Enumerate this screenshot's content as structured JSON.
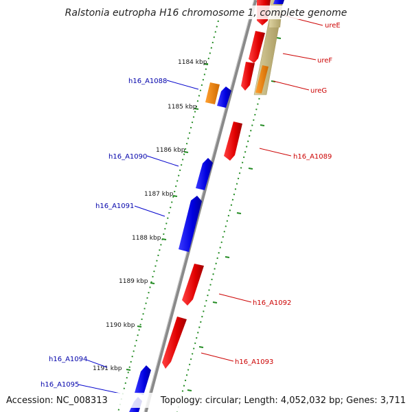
{
  "title": "Ralstonia eutropha H16 chromosome 1, complete genome",
  "footer": {
    "accession": "Accession: NC_008313",
    "topology": "Topology: circular; Length: 4,052,032 bp; Genes: 3,711"
  },
  "ticks": [
    {
      "label": "1184 kbp"
    },
    {
      "label": "1185 kbp"
    },
    {
      "label": "1186 kbp"
    },
    {
      "label": "1187 kbp"
    },
    {
      "label": "1188 kbp"
    },
    {
      "label": "1189 kbp"
    },
    {
      "label": "1190 kbp"
    },
    {
      "label": "1191 kbp"
    }
  ],
  "genes": {
    "ureE": "ureE",
    "ureF": "ureF",
    "ureG": "ureG",
    "h16_A1088": "h16_A1088",
    "h16_A1089": "h16_A1089",
    "h16_A1090": "h16_A1090",
    "h16_A1091": "h16_A1091",
    "h16_A1092": "h16_A1092",
    "h16_A1093": "h16_A1093",
    "h16_A1094": "h16_A1094",
    "h16_A1095": "h16_A1095"
  },
  "colors": {
    "forward_gene": "#ff0000",
    "reverse_gene": "#0000ff",
    "rna_gene": "#ff8800",
    "region": "#c8bb88",
    "backbone": "#888888",
    "tick": "#228b22"
  }
}
